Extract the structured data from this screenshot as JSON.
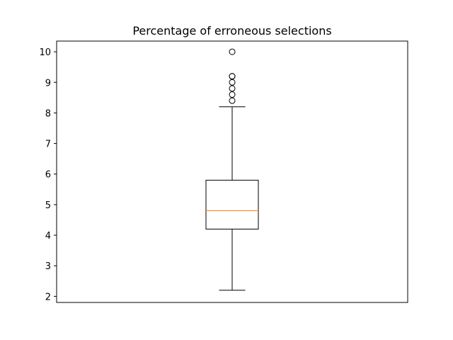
{
  "chart_data": {
    "type": "box",
    "title": "Percentage of erroneous selections",
    "xlabel": "",
    "ylabel": "",
    "ylim": [
      1.8,
      10.35
    ],
    "yticks": [
      2,
      3,
      4,
      5,
      6,
      7,
      8,
      9,
      10
    ],
    "grid": false,
    "boxes": [
      {
        "whisker_low": 2.2,
        "q1": 4.2,
        "median": 4.8,
        "q3": 5.8,
        "whisker_high": 8.2,
        "outliers": [
          8.4,
          8.6,
          8.8,
          9.0,
          9.2,
          9.2,
          10.0
        ]
      }
    ],
    "colors": {
      "box": "#000000",
      "median": "#ff7f0e",
      "outlier_edge": "#000000"
    }
  }
}
